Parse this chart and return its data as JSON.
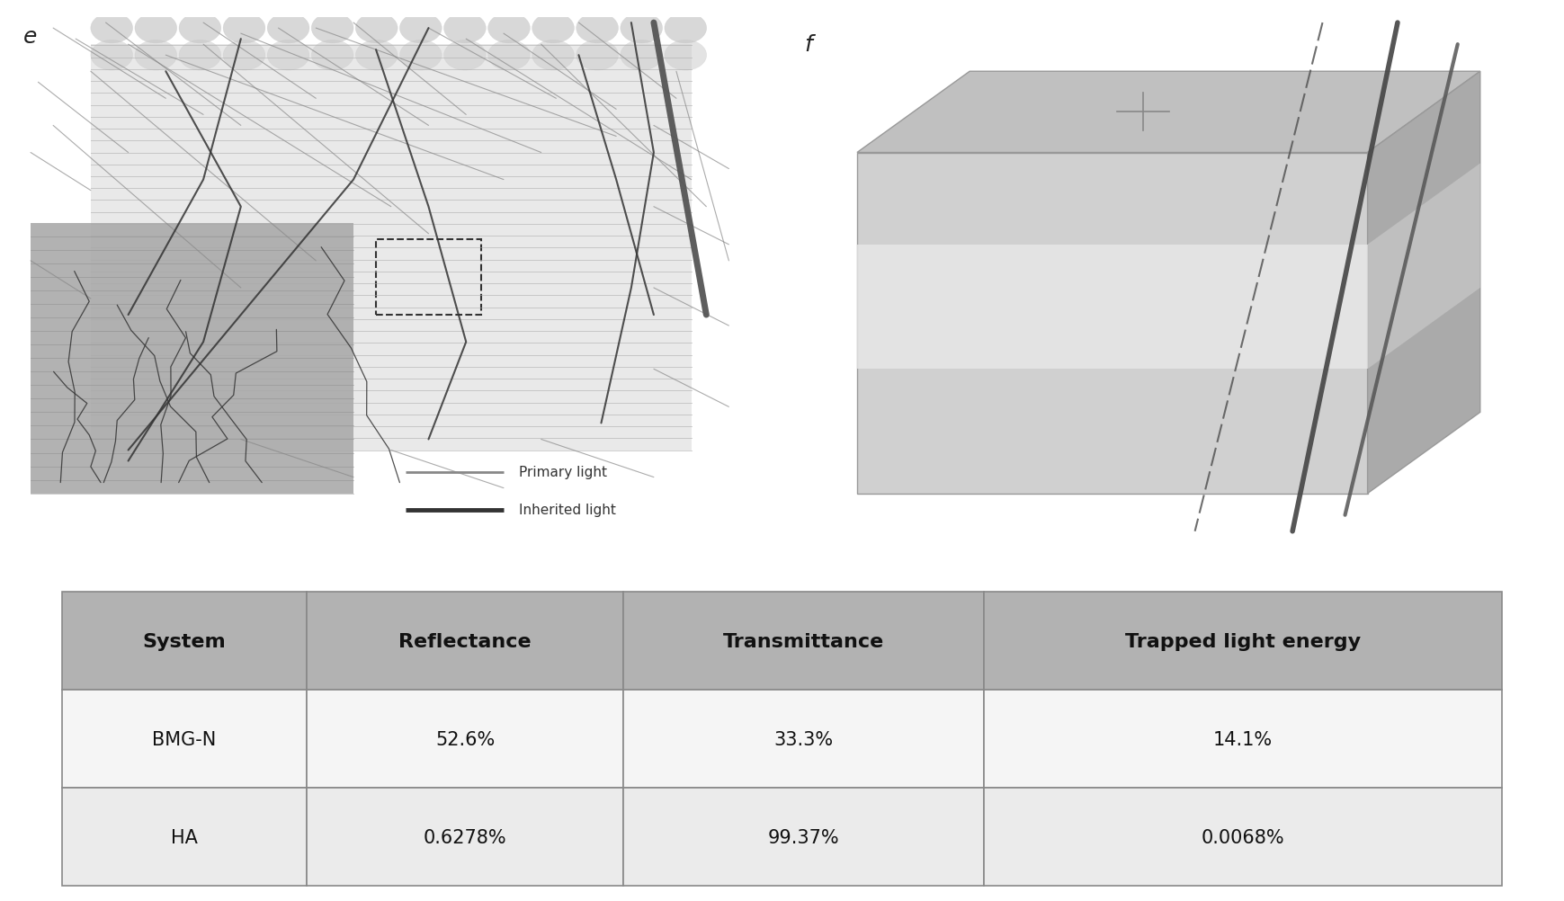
{
  "panel_e_label": "e",
  "panel_f_label": "f",
  "legend_primary": "Primary light",
  "legend_inherited": "Inherited light",
  "table_headers": [
    "System",
    "Reflectance",
    "Transmittance",
    "Trapped light energy"
  ],
  "table_rows": [
    [
      "BMG-N",
      "52.6%",
      "33.3%",
      "14.1%"
    ],
    [
      "HA",
      "0.6278%",
      "99.37%",
      "0.0068%"
    ]
  ],
  "header_bg": "#b2b2b2",
  "row1_bg": "#f5f5f5",
  "row2_bg": "#ebebeb",
  "table_border": "#888888",
  "primary_light_color": "#888888",
  "inherited_light_color": "#333333",
  "bg_color": "#ffffff",
  "label_fontsize": 18,
  "table_header_fontsize": 16,
  "table_data_fontsize": 15
}
